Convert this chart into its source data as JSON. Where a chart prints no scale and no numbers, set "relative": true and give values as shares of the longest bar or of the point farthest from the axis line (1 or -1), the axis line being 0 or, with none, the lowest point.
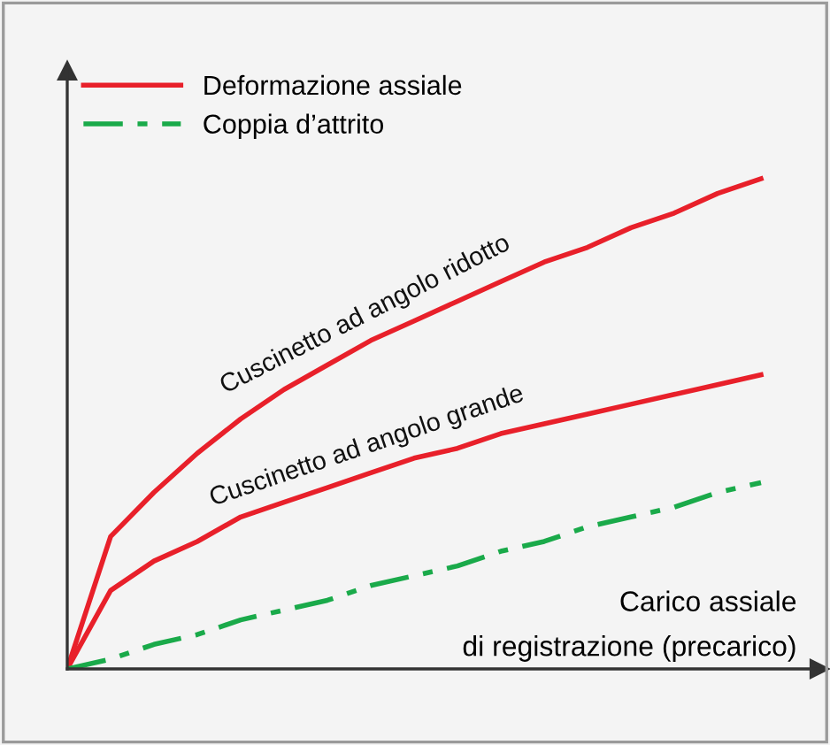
{
  "chart_data": {
    "type": "line",
    "relative": true,
    "xlabel": "Carico assiale\ndi registrazione (precarico)",
    "categories": [
      null,
      null,
      null,
      null,
      null,
      null,
      null,
      null,
      null,
      null,
      null,
      null,
      null,
      null,
      null,
      null,
      null
    ],
    "series": [
      {
        "name": "Deformazione assiale",
        "color": "#e8202a",
        "line_style": "solid",
        "values": [
          0,
          0.27,
          0.36,
          0.44,
          0.51,
          0.57,
          0.62,
          0.67,
          0.71,
          0.75,
          0.79,
          0.83,
          0.86,
          0.9,
          0.93,
          0.97,
          1.0
        ]
      },
      {
        "color": "#e8202a",
        "line_style": "solid",
        "values": [
          0,
          0.16,
          0.22,
          0.26,
          0.31,
          0.34,
          0.37,
          0.4,
          0.43,
          0.45,
          0.48,
          0.5,
          0.52,
          0.54,
          0.56,
          0.58,
          0.6
        ]
      },
      {
        "name": "Coppia d’attrito",
        "color": "#1aaa4a",
        "line_style": "dashdot",
        "values": [
          0,
          0.02,
          0.05,
          0.07,
          0.1,
          0.12,
          0.14,
          0.17,
          0.19,
          0.21,
          0.24,
          0.26,
          0.29,
          0.31,
          0.33,
          0.36,
          0.38
        ]
      }
    ],
    "annotations": [
      "Cuscinetto ad angolo ridotto",
      "Cuscinetto ad angolo grande"
    ],
    "legend": "top left",
    "grid": false,
    "marker": "none"
  }
}
